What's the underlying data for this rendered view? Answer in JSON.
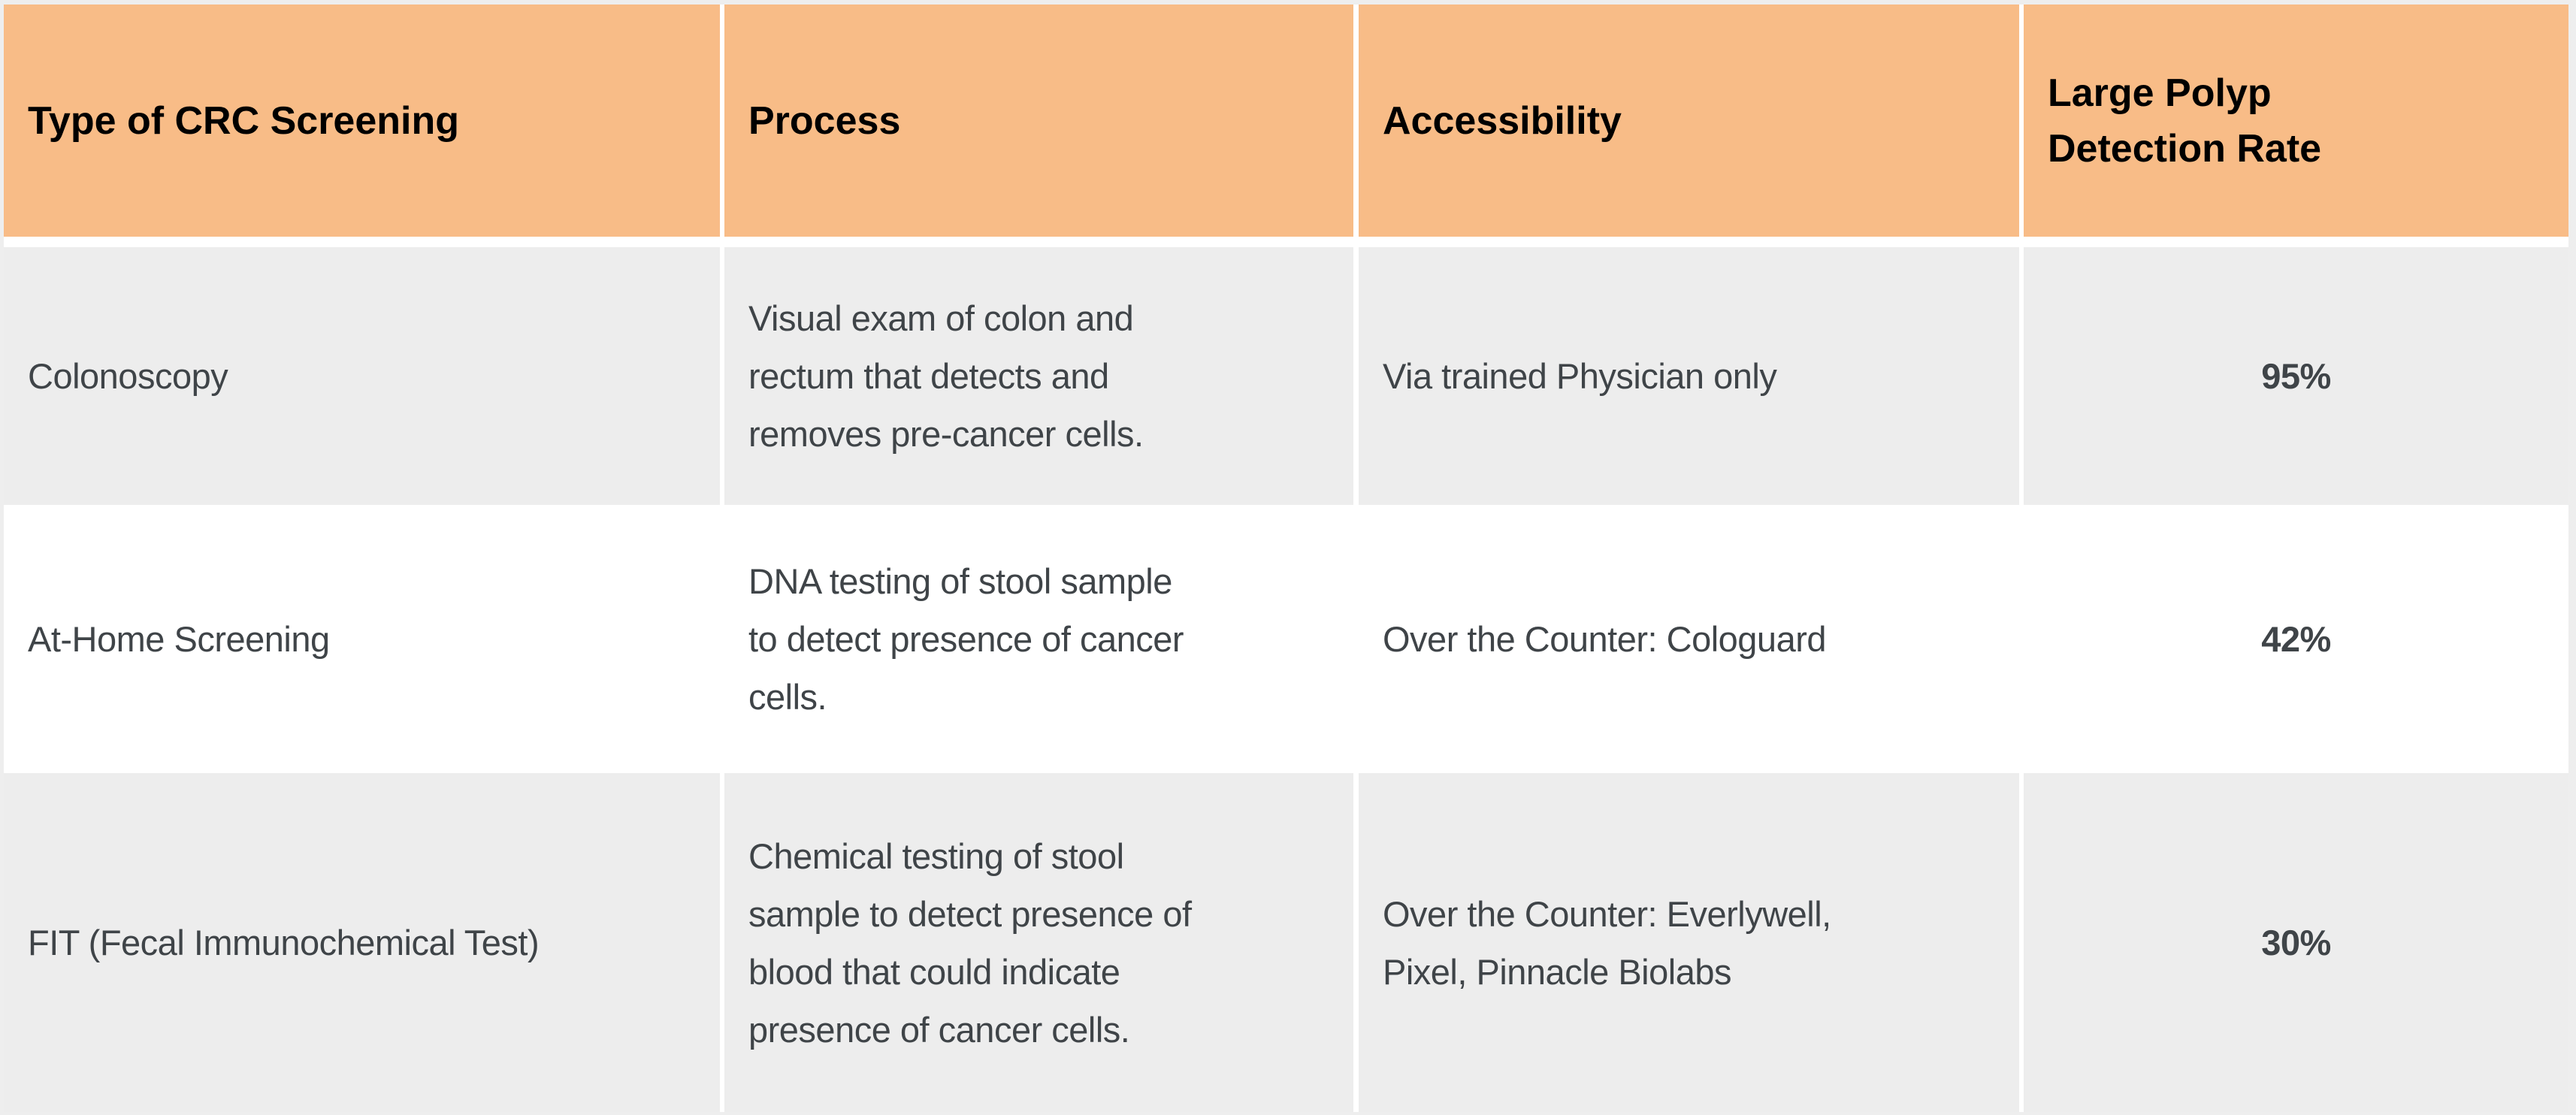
{
  "table": {
    "colors": {
      "header_bg": "#f8bc87",
      "row_alt_bg": "#ededed",
      "row_bg": "#ffffff",
      "text": "#3f4448"
    },
    "headers": [
      "Type of CRC Screening",
      "Process",
      "Accessibility",
      "Large Polyp\nDetection Rate"
    ],
    "rows": [
      {
        "type": "Colonoscopy",
        "process": "Visual exam of colon and\nrectum that detects and\nremoves pre-cancer cells.",
        "accessibility": "Via trained Physician only",
        "rate": "95%"
      },
      {
        "type": "At-Home Screening",
        "process": "DNA testing of stool sample\nto detect presence of cancer\ncells.",
        "accessibility": "Over the Counter: Cologuard",
        "rate": "42%"
      },
      {
        "type": "FIT (Fecal Immunochemical Test)",
        "process": "Chemical testing of stool\nsample to detect presence of\nblood that could indicate\npresence of cancer cells.",
        "accessibility": "Over the Counter: Everlywell,\nPixel, Pinnacle Biolabs",
        "rate": "30%"
      }
    ]
  }
}
